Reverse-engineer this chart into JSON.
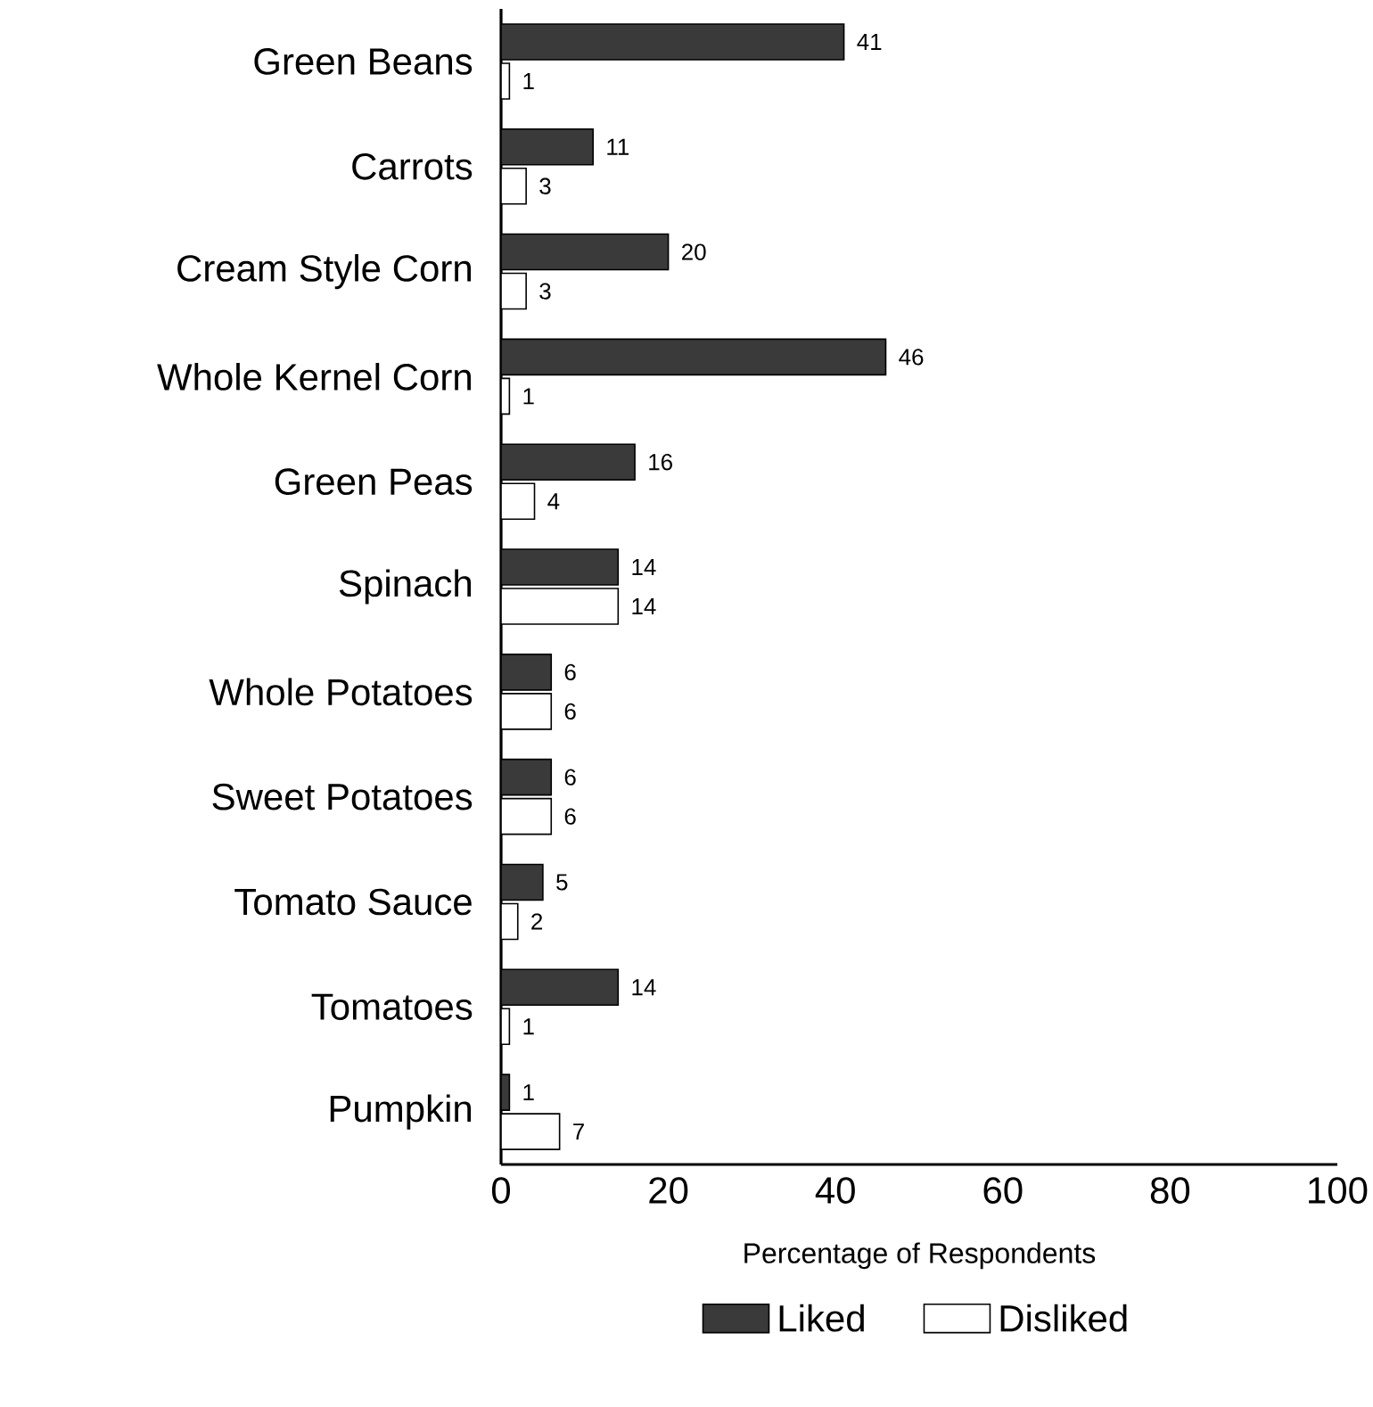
{
  "chart_data": {
    "type": "bar",
    "orientation": "horizontal",
    "xlabel": "Percentage of Respondents",
    "categories": [
      "Green Beans",
      "Carrots",
      "Cream Style Corn",
      "Whole Kernel Corn",
      "Green Peas",
      "Spinach",
      "Whole Potatoes",
      "Sweet Potatoes",
      "Tomato Sauce",
      "Tomatoes",
      "Pumpkin"
    ],
    "series": [
      {
        "name": "Liked",
        "color": "#3a3a3a",
        "values": [
          41,
          11,
          20,
          46,
          16,
          14,
          6,
          6,
          5,
          14,
          1
        ]
      },
      {
        "name": "Disliked",
        "color": "#ffffff",
        "values": [
          1,
          3,
          3,
          1,
          4,
          14,
          6,
          6,
          2,
          1,
          7
        ]
      }
    ],
    "xlim": [
      0,
      100
    ],
    "xticks": [
      0,
      20,
      40,
      60,
      80,
      100
    ],
    "data_labels": true,
    "legend": "bottom",
    "grid": false
  }
}
